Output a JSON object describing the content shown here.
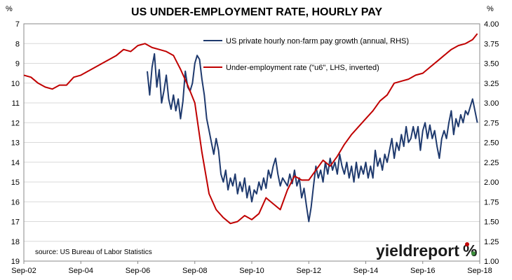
{
  "chart_data": {
    "type": "line",
    "title": "US UNDER-EMPLOYMENT RATE, HOURLY PAY",
    "left_axis": {
      "unit": "%",
      "inverted": true,
      "range": [
        7,
        19
      ],
      "ticks": [
        "7",
        "8",
        "9",
        "10",
        "11",
        "12",
        "13",
        "14",
        "15",
        "16",
        "17",
        "18",
        "19"
      ]
    },
    "right_axis": {
      "unit": "%",
      "range": [
        1.0,
        4.0
      ],
      "ticks": [
        "1.00",
        "1.25",
        "1.50",
        "1.75",
        "2.00",
        "2.25",
        "2.50",
        "2.75",
        "3.00",
        "3.25",
        "3.50",
        "3.75",
        "4.00"
      ]
    },
    "x_axis": {
      "ticks": [
        "Sep-02",
        "Sep-04",
        "Sep-06",
        "Sep-08",
        "Sep-10",
        "Sep-12",
        "Sep-14",
        "Sep-16",
        "Sep-18"
      ]
    },
    "grid": true,
    "legend_position": "top-center",
    "series": [
      {
        "name": "US private hourly non-farm pay growth (annual, RHS)",
        "axis": "right",
        "color": "#1f3a6e",
        "points": [
          [
            "2007-01",
            3.4
          ],
          [
            "2007-02",
            3.1
          ],
          [
            "2007-03",
            3.45
          ],
          [
            "2007-04",
            3.62
          ],
          [
            "2007-05",
            3.2
          ],
          [
            "2007-06",
            3.42
          ],
          [
            "2007-07",
            3.0
          ],
          [
            "2007-08",
            3.15
          ],
          [
            "2007-09",
            3.35
          ],
          [
            "2007-10",
            3.05
          ],
          [
            "2007-11",
            2.92
          ],
          [
            "2007-12",
            3.1
          ],
          [
            "2008-01",
            2.9
          ],
          [
            "2008-02",
            3.05
          ],
          [
            "2008-03",
            2.8
          ],
          [
            "2008-04",
            3.02
          ],
          [
            "2008-05",
            3.4
          ],
          [
            "2008-06",
            3.2
          ],
          [
            "2008-07",
            3.15
          ],
          [
            "2008-08",
            3.25
          ],
          [
            "2008-09",
            3.5
          ],
          [
            "2008-10",
            3.6
          ],
          [
            "2008-11",
            3.55
          ],
          [
            "2008-12",
            3.3
          ],
          [
            "2009-01",
            3.1
          ],
          [
            "2009-02",
            2.8
          ],
          [
            "2009-03",
            2.65
          ],
          [
            "2009-04",
            2.5
          ],
          [
            "2009-05",
            2.35
          ],
          [
            "2009-06",
            2.55
          ],
          [
            "2009-07",
            2.4
          ],
          [
            "2009-08",
            2.1
          ],
          [
            "2009-09",
            2.0
          ],
          [
            "2009-10",
            2.15
          ],
          [
            "2009-11",
            1.9
          ],
          [
            "2009-12",
            2.05
          ],
          [
            "2010-01",
            1.95
          ],
          [
            "2010-02",
            2.1
          ],
          [
            "2010-03",
            1.85
          ],
          [
            "2010-04",
            2.0
          ],
          [
            "2010-05",
            1.88
          ],
          [
            "2010-06",
            2.05
          ],
          [
            "2010-07",
            1.8
          ],
          [
            "2010-08",
            1.95
          ],
          [
            "2010-09",
            1.75
          ],
          [
            "2010-10",
            1.9
          ],
          [
            "2010-11",
            1.85
          ],
          [
            "2010-12",
            2.0
          ],
          [
            "2011-01",
            1.9
          ],
          [
            "2011-02",
            2.05
          ],
          [
            "2011-03",
            1.92
          ],
          [
            "2011-04",
            2.15
          ],
          [
            "2011-05",
            2.05
          ],
          [
            "2011-06",
            2.2
          ],
          [
            "2011-07",
            2.3
          ],
          [
            "2011-08",
            2.1
          ],
          [
            "2011-09",
            1.95
          ],
          [
            "2011-10",
            2.05
          ],
          [
            "2011-11",
            2.0
          ],
          [
            "2011-12",
            1.95
          ],
          [
            "2012-01",
            2.1
          ],
          [
            "2012-02",
            1.98
          ],
          [
            "2012-03",
            2.15
          ],
          [
            "2012-04",
            1.95
          ],
          [
            "2012-05",
            2.05
          ],
          [
            "2012-06",
            1.8
          ],
          [
            "2012-07",
            1.92
          ],
          [
            "2012-08",
            1.7
          ],
          [
            "2012-09",
            1.5
          ],
          [
            "2012-10",
            1.68
          ],
          [
            "2012-11",
            1.95
          ],
          [
            "2012-12",
            2.2
          ],
          [
            "2013-01",
            2.05
          ],
          [
            "2013-02",
            2.15
          ],
          [
            "2013-03",
            2.0
          ],
          [
            "2013-04",
            2.25
          ],
          [
            "2013-05",
            2.1
          ],
          [
            "2013-06",
            2.3
          ],
          [
            "2013-07",
            2.15
          ],
          [
            "2013-08",
            2.25
          ],
          [
            "2013-09",
            2.1
          ],
          [
            "2013-10",
            2.35
          ],
          [
            "2013-11",
            2.2
          ],
          [
            "2013-12",
            2.1
          ],
          [
            "2014-01",
            2.25
          ],
          [
            "2014-02",
            2.05
          ],
          [
            "2014-03",
            2.2
          ],
          [
            "2014-04",
            2.0
          ],
          [
            "2014-05",
            2.25
          ],
          [
            "2014-06",
            2.05
          ],
          [
            "2014-07",
            2.2
          ],
          [
            "2014-08",
            2.1
          ],
          [
            "2014-09",
            2.25
          ],
          [
            "2014-10",
            2.05
          ],
          [
            "2014-11",
            2.2
          ],
          [
            "2014-12",
            2.05
          ],
          [
            "2015-01",
            2.4
          ],
          [
            "2015-02",
            2.2
          ],
          [
            "2015-03",
            2.3
          ],
          [
            "2015-04",
            2.15
          ],
          [
            "2015-05",
            2.35
          ],
          [
            "2015-06",
            2.25
          ],
          [
            "2015-07",
            2.4
          ],
          [
            "2015-08",
            2.55
          ],
          [
            "2015-09",
            2.3
          ],
          [
            "2015-10",
            2.5
          ],
          [
            "2015-11",
            2.4
          ],
          [
            "2015-12",
            2.6
          ],
          [
            "2016-01",
            2.45
          ],
          [
            "2016-02",
            2.7
          ],
          [
            "2016-03",
            2.5
          ],
          [
            "2016-04",
            2.55
          ],
          [
            "2016-05",
            2.7
          ],
          [
            "2016-06",
            2.55
          ],
          [
            "2016-07",
            2.7
          ],
          [
            "2016-08",
            2.4
          ],
          [
            "2016-09",
            2.65
          ],
          [
            "2016-10",
            2.75
          ],
          [
            "2016-11",
            2.55
          ],
          [
            "2016-12",
            2.72
          ],
          [
            "2017-01",
            2.55
          ],
          [
            "2017-02",
            2.65
          ],
          [
            "2017-03",
            2.45
          ],
          [
            "2017-04",
            2.3
          ],
          [
            "2017-05",
            2.55
          ],
          [
            "2017-06",
            2.65
          ],
          [
            "2017-07",
            2.55
          ],
          [
            "2017-08",
            2.75
          ],
          [
            "2017-09",
            2.9
          ],
          [
            "2017-10",
            2.6
          ],
          [
            "2017-11",
            2.8
          ],
          [
            "2017-12",
            2.7
          ],
          [
            "2018-01",
            2.85
          ],
          [
            "2018-02",
            2.75
          ],
          [
            "2018-03",
            2.9
          ],
          [
            "2018-04",
            2.85
          ],
          [
            "2018-05",
            2.95
          ],
          [
            "2018-06",
            3.05
          ],
          [
            "2018-07",
            2.9
          ],
          [
            "2018-08",
            2.75
          ]
        ]
      },
      {
        "name": "Under-employment rate (\"u6\", LHS, inverted)",
        "axis": "left",
        "color": "#c00000",
        "points": [
          [
            "2002-09",
            9.6
          ],
          [
            "2002-12",
            9.7
          ],
          [
            "2003-03",
            10.0
          ],
          [
            "2003-06",
            10.2
          ],
          [
            "2003-09",
            10.3
          ],
          [
            "2003-12",
            10.1
          ],
          [
            "2004-03",
            10.1
          ],
          [
            "2004-06",
            9.7
          ],
          [
            "2004-09",
            9.6
          ],
          [
            "2004-12",
            9.4
          ],
          [
            "2005-03",
            9.2
          ],
          [
            "2005-06",
            9.0
          ],
          [
            "2005-09",
            8.8
          ],
          [
            "2005-12",
            8.6
          ],
          [
            "2006-03",
            8.3
          ],
          [
            "2006-06",
            8.4
          ],
          [
            "2006-09",
            8.1
          ],
          [
            "2006-12",
            8.0
          ],
          [
            "2007-03",
            8.2
          ],
          [
            "2007-06",
            8.3
          ],
          [
            "2007-09",
            8.4
          ],
          [
            "2007-12",
            8.6
          ],
          [
            "2008-03",
            9.3
          ],
          [
            "2008-06",
            10.1
          ],
          [
            "2008-09",
            11.0
          ],
          [
            "2008-12",
            13.5
          ],
          [
            "2009-03",
            15.6
          ],
          [
            "2009-06",
            16.4
          ],
          [
            "2009-09",
            16.8
          ],
          [
            "2009-12",
            17.1
          ],
          [
            "2010-03",
            17.0
          ],
          [
            "2010-06",
            16.7
          ],
          [
            "2010-09",
            16.9
          ],
          [
            "2010-12",
            16.6
          ],
          [
            "2011-03",
            15.8
          ],
          [
            "2011-06",
            16.1
          ],
          [
            "2011-09",
            16.4
          ],
          [
            "2011-12",
            15.4
          ],
          [
            "2012-03",
            14.7
          ],
          [
            "2012-06",
            14.9
          ],
          [
            "2012-09",
            14.9
          ],
          [
            "2012-12",
            14.4
          ],
          [
            "2013-03",
            13.9
          ],
          [
            "2013-06",
            14.2
          ],
          [
            "2013-09",
            13.7
          ],
          [
            "2013-12",
            13.1
          ],
          [
            "2014-03",
            12.6
          ],
          [
            "2014-06",
            12.2
          ],
          [
            "2014-09",
            11.8
          ],
          [
            "2014-12",
            11.4
          ],
          [
            "2015-03",
            10.9
          ],
          [
            "2015-06",
            10.6
          ],
          [
            "2015-09",
            10.0
          ],
          [
            "2015-12",
            9.9
          ],
          [
            "2016-03",
            9.8
          ],
          [
            "2016-06",
            9.6
          ],
          [
            "2016-09",
            9.5
          ],
          [
            "2016-12",
            9.2
          ],
          [
            "2017-03",
            8.9
          ],
          [
            "2017-06",
            8.6
          ],
          [
            "2017-09",
            8.3
          ],
          [
            "2017-12",
            8.1
          ],
          [
            "2018-03",
            8.0
          ],
          [
            "2018-06",
            7.8
          ],
          [
            "2018-08",
            7.5
          ]
        ]
      }
    ],
    "annotations": [
      "source: US Bureau of Labor Statistics"
    ]
  },
  "logo": {
    "text": "yieldreport",
    "mark": "%"
  }
}
